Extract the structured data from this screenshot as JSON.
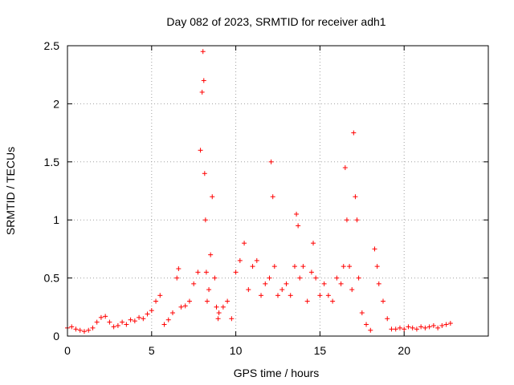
{
  "chart_data": {
    "type": "scatter",
    "title": "Day 082 of 2023, SRMTID for receiver adh1",
    "xlabel": "GPS time / hours",
    "ylabel": "SRMTID / TECUs",
    "xlim": [
      0,
      25
    ],
    "ylim": [
      0,
      2.5
    ],
    "x_ticks": [
      0,
      5,
      10,
      15,
      20
    ],
    "x_tick_labels": [
      "0",
      "5",
      "10",
      "15",
      "20"
    ],
    "y_ticks": [
      0,
      0.5,
      1,
      1.5,
      2,
      2.5
    ],
    "y_tick_labels": [
      "0",
      "0.5",
      "1",
      "1.5",
      "2",
      "2.5"
    ],
    "grid": true,
    "marker": "+",
    "marker_color": "#ff0000",
    "series": [
      {
        "name": "adh1",
        "x": [
          0.0,
          0.25,
          0.5,
          0.75,
          1.0,
          1.25,
          1.5,
          1.75,
          2.0,
          2.25,
          2.5,
          2.75,
          3.0,
          3.25,
          3.5,
          3.75,
          4.0,
          4.25,
          4.5,
          4.75,
          5.0,
          5.25,
          5.5,
          5.75,
          6.0,
          6.25,
          6.5,
          6.6,
          6.75,
          7.0,
          7.25,
          7.5,
          7.75,
          7.9,
          8.0,
          8.05,
          8.1,
          8.15,
          8.2,
          8.25,
          8.3,
          8.4,
          8.5,
          8.6,
          8.75,
          8.85,
          8.95,
          9.0,
          9.25,
          9.5,
          9.75,
          10.0,
          10.25,
          10.5,
          10.75,
          11.0,
          11.25,
          11.5,
          11.75,
          12.0,
          12.1,
          12.2,
          12.3,
          12.5,
          12.75,
          13.0,
          13.25,
          13.5,
          13.6,
          13.7,
          13.8,
          14.0,
          14.25,
          14.5,
          14.6,
          14.75,
          15.0,
          15.25,
          15.5,
          15.75,
          16.0,
          16.25,
          16.4,
          16.5,
          16.6,
          16.75,
          16.9,
          17.0,
          17.1,
          17.2,
          17.3,
          17.5,
          17.75,
          18.0,
          18.25,
          18.4,
          18.5,
          18.75,
          19.0,
          19.25,
          19.5,
          19.75,
          20.0,
          20.25,
          20.5,
          20.75,
          21.0,
          21.25,
          21.5,
          21.75,
          22.0,
          22.25,
          22.5,
          22.75
        ],
        "y": [
          0.07,
          0.08,
          0.06,
          0.05,
          0.04,
          0.05,
          0.07,
          0.12,
          0.16,
          0.17,
          0.12,
          0.08,
          0.09,
          0.12,
          0.1,
          0.14,
          0.13,
          0.16,
          0.15,
          0.19,
          0.22,
          0.3,
          0.35,
          0.1,
          0.14,
          0.2,
          0.5,
          0.58,
          0.25,
          0.26,
          0.3,
          0.45,
          0.55,
          1.6,
          2.1,
          2.45,
          2.2,
          1.4,
          1.0,
          0.55,
          0.3,
          0.4,
          0.7,
          1.2,
          0.5,
          0.25,
          0.15,
          0.2,
          0.25,
          0.3,
          0.15,
          0.55,
          0.65,
          0.8,
          0.4,
          0.6,
          0.65,
          0.35,
          0.45,
          0.5,
          1.5,
          1.2,
          0.6,
          0.35,
          0.4,
          0.45,
          0.35,
          0.6,
          1.05,
          0.95,
          0.5,
          0.6,
          0.3,
          0.55,
          0.8,
          0.5,
          0.35,
          0.45,
          0.35,
          0.3,
          0.5,
          0.45,
          0.6,
          1.45,
          1.0,
          0.6,
          0.4,
          1.75,
          1.2,
          1.0,
          0.5,
          0.2,
          0.1,
          0.05,
          0.75,
          0.6,
          0.45,
          0.3,
          0.15,
          0.06,
          0.06,
          0.07,
          0.06,
          0.08,
          0.07,
          0.06,
          0.08,
          0.07,
          0.08,
          0.09,
          0.07,
          0.09,
          0.1,
          0.11
        ]
      }
    ]
  }
}
